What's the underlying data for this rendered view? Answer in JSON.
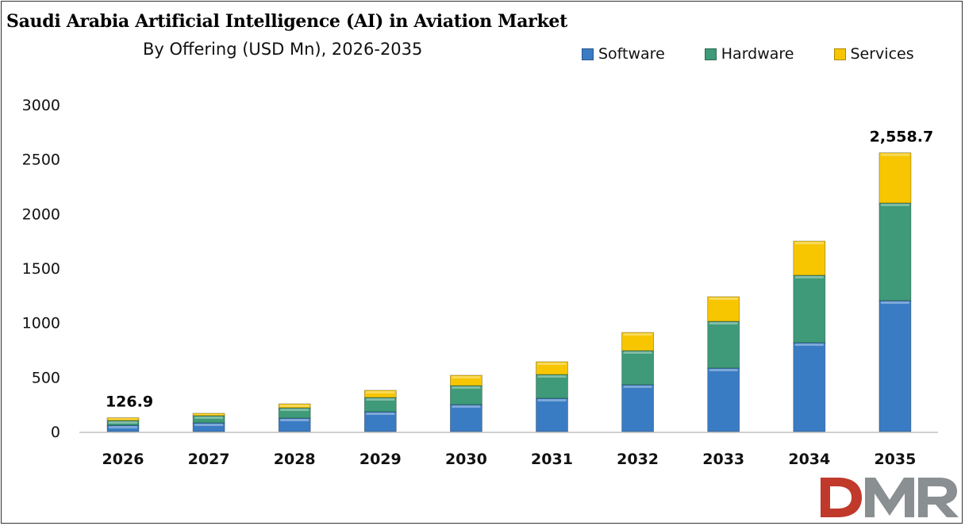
{
  "chart_data": {
    "type": "bar",
    "stacked": true,
    "title": "Saudi Arabia Artificial Intelligence (AI) in Aviation Market",
    "subtitle": "By Offering (USD Mn), 2026-2035",
    "categories": [
      "2026",
      "2027",
      "2028",
      "2029",
      "2030",
      "2031",
      "2032",
      "2033",
      "2034",
      "2035"
    ],
    "series": [
      {
        "name": "Software",
        "color": "#3a7cc4",
        "values": [
          58,
          80,
          124,
          182,
          248,
          306,
          430,
          583,
          816,
          1202
        ]
      },
      {
        "name": "Hardware",
        "color": "#3e9a78",
        "values": [
          44,
          66,
          94,
          131,
          174,
          218,
          313,
          429,
          619,
          896
        ]
      },
      {
        "name": "Services",
        "color": "#f7c600",
        "values": [
          24.9,
          22,
          37,
          66,
          95,
          117,
          167,
          226,
          313,
          460.7
        ]
      }
    ],
    "data_labels": [
      {
        "category": "2026",
        "text": "126.9"
      },
      {
        "category": "2035",
        "text": "2,558.7"
      }
    ],
    "yticks": [
      0,
      500,
      1000,
      1500,
      2000,
      2500,
      3000
    ],
    "ylim": [
      0,
      3000
    ],
    "grid": false,
    "legend_position": "top-right"
  },
  "logo": {
    "text": "DMR",
    "colors": [
      "#c0392b",
      "#7f8c8d"
    ]
  }
}
